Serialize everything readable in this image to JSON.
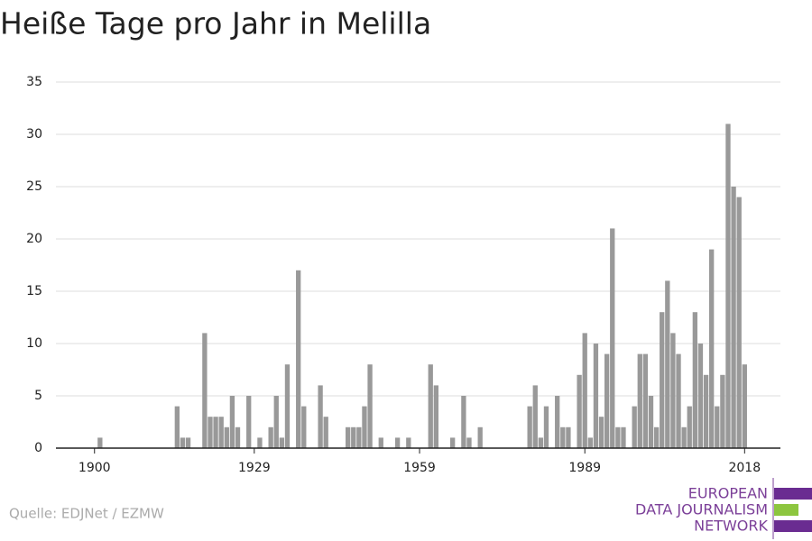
{
  "chart_data": {
    "type": "bar",
    "title": "Heiße Tage pro Jahr in Melilla",
    "source": "Quelle: EDJNet / EZMW",
    "x": [
      1901,
      1915,
      1916,
      1917,
      1920,
      1921,
      1922,
      1923,
      1924,
      1925,
      1926,
      1928,
      1930,
      1932,
      1933,
      1934,
      1935,
      1937,
      1938,
      1941,
      1942,
      1946,
      1947,
      1948,
      1949,
      1950,
      1952,
      1955,
      1957,
      1961,
      1962,
      1965,
      1967,
      1968,
      1970,
      1979,
      1980,
      1981,
      1982,
      1984,
      1985,
      1986,
      1988,
      1989,
      1990,
      1991,
      1992,
      1993,
      1994,
      1995,
      1996,
      1998,
      1999,
      2000,
      2001,
      2002,
      2003,
      2004,
      2005,
      2006,
      2007,
      2008,
      2009,
      2010,
      2011,
      2012,
      2013,
      2014,
      2015,
      2016,
      2017,
      2018
    ],
    "values": [
      1,
      4,
      1,
      1,
      11,
      3,
      3,
      3,
      2,
      5,
      2,
      5,
      1,
      2,
      5,
      1,
      8,
      17,
      4,
      6,
      3,
      2,
      2,
      2,
      4,
      8,
      1,
      1,
      1,
      8,
      6,
      1,
      5,
      1,
      2,
      4,
      6,
      1,
      4,
      5,
      2,
      2,
      7,
      11,
      1,
      10,
      3,
      9,
      21,
      2,
      2,
      4,
      9,
      9,
      5,
      2,
      13,
      16,
      11,
      9,
      2,
      4,
      13,
      10,
      7,
      19,
      4,
      7,
      31,
      25,
      24,
      8
    ],
    "color": "#999999",
    "xlim": [
      1893,
      2024.5
    ],
    "xticks": [
      1900,
      1929,
      1959,
      1989,
      2018
    ],
    "ylim": [
      0,
      35
    ],
    "yticks": [
      0,
      5,
      10,
      15,
      20,
      25,
      30,
      35
    ],
    "grid": true
  },
  "logo": [
    "EUROPEAN",
    "DATA JOURNALISM",
    "NETWORK"
  ]
}
